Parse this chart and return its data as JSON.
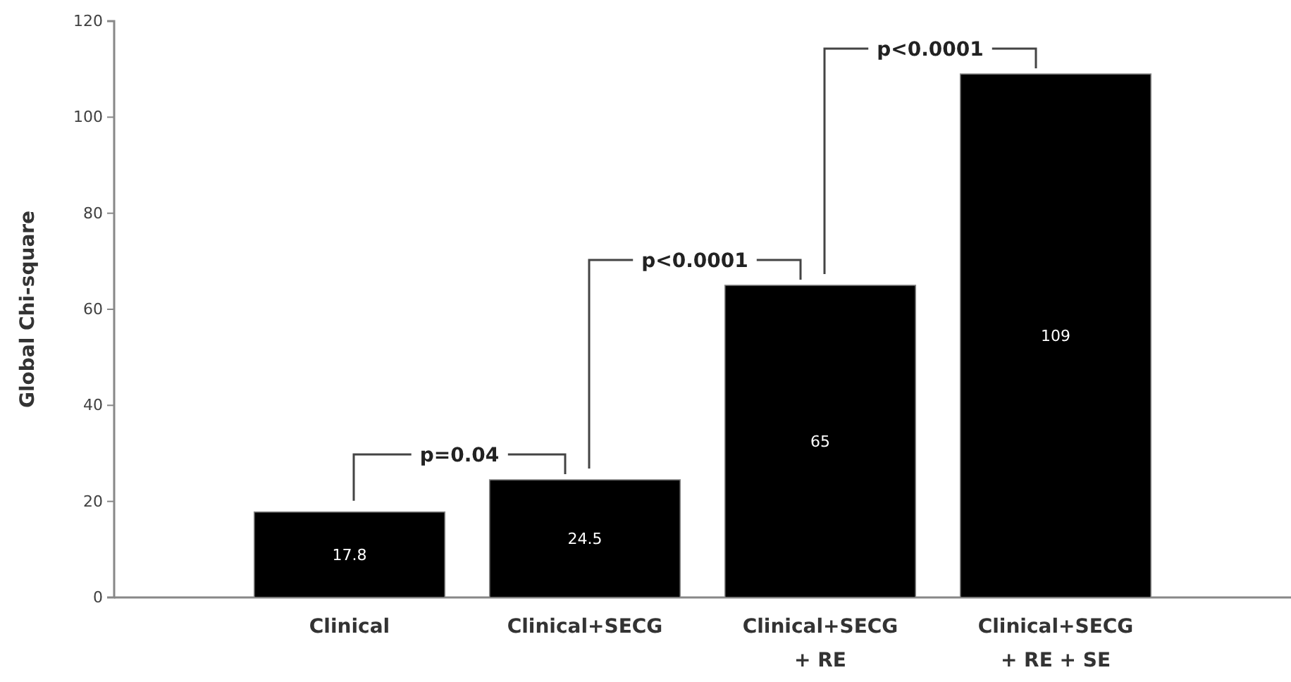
{
  "chart_data": {
    "type": "bar",
    "ylabel": "Global Chi-square",
    "categories": [
      "Clinical",
      "Clinical+SECG",
      "Clinical+SECG\n+ RE",
      "Clinical+SECG\n+ RE + SE"
    ],
    "values": [
      17.8,
      24.5,
      65,
      109
    ],
    "color": "#000000",
    "data_labels": true,
    "ylim": [
      0,
      120
    ],
    "yticks": [
      0,
      20,
      40,
      60,
      80,
      100,
      120
    ],
    "grid": false,
    "annotations": [
      "p=0.04",
      "p<0.0001",
      "p<0.0001"
    ]
  }
}
